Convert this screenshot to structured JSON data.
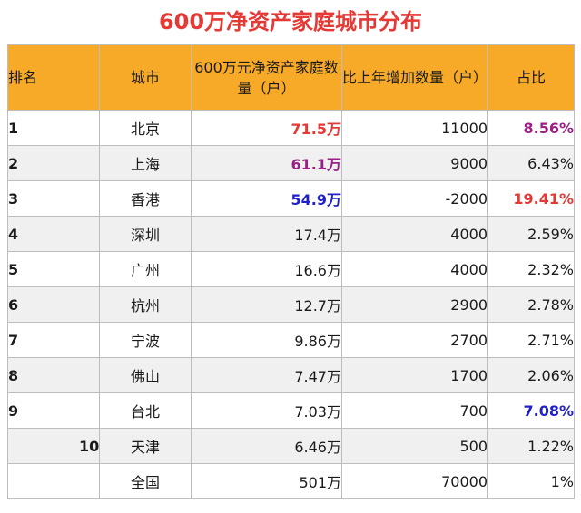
{
  "title": "600万净资产家庭城市分布",
  "headers": {
    "rank": "排名",
    "city": "城市",
    "count": "600万元净资产家庭数量（户）",
    "increase": "比上年增加数量（户）",
    "share": "占比"
  },
  "rows": [
    {
      "rank": "1",
      "city": "北京",
      "count": "71.5万",
      "increase": "11000",
      "share": "8.56%"
    },
    {
      "rank": "2",
      "city": "上海",
      "count": "61.1万",
      "increase": "9000",
      "share": "6.43%"
    },
    {
      "rank": "3",
      "city": "香港",
      "count": "54.9万",
      "increase": "-2000",
      "share": "19.41%"
    },
    {
      "rank": "4",
      "city": "深圳",
      "count": "17.4万",
      "increase": "4000",
      "share": "2.59%"
    },
    {
      "rank": "5",
      "city": "广州",
      "count": "16.6万",
      "increase": "4000",
      "share": "2.32%"
    },
    {
      "rank": "6",
      "city": "杭州",
      "count": "12.7万",
      "increase": "2900",
      "share": "2.78%"
    },
    {
      "rank": "7",
      "city": "宁波",
      "count": "9.86万",
      "increase": "2700",
      "share": "2.71%"
    },
    {
      "rank": "8",
      "city": "佛山",
      "count": "7.47万",
      "increase": "1700",
      "share": "2.06%"
    },
    {
      "rank": "9",
      "city": "台北",
      "count": "7.03万",
      "increase": "700",
      "share": "7.08%"
    },
    {
      "rank": "10",
      "city": "天津",
      "count": "6.46万",
      "increase": "500",
      "share": "1.22%"
    },
    {
      "rank": "",
      "city": "全国",
      "count": "501万",
      "increase": "70000",
      "share": "1%"
    }
  ],
  "colors": {
    "title": "#e53935",
    "header_bg": "#f7a928",
    "highlight_red": "#e53935",
    "highlight_purple": "#9c1f86",
    "highlight_blue": "#2121c8"
  }
}
